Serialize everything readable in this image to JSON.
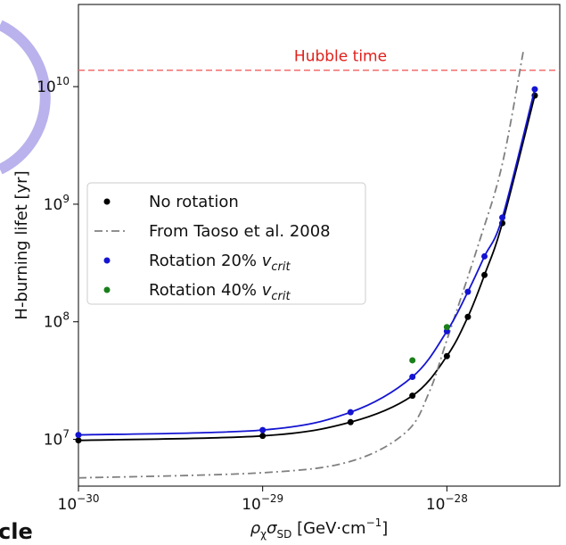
{
  "chart_data": {
    "type": "line",
    "x_label": [
      {
        "text": "ρ"
      },
      {
        "text": "χ",
        "sub": true
      },
      {
        "text": "σ"
      },
      {
        "text": "SD",
        "sub": true
      },
      {
        "text": " [GeV·cm"
      },
      {
        "text": "−1",
        "sup": true
      },
      {
        "text": "]"
      }
    ],
    "y_label": "H-burning lifet [yr]",
    "log_x": true,
    "log_y": true,
    "xlim": [
      1e-30,
      4.1e-28
    ],
    "ylim": [
      4000000,
      50000000000
    ],
    "xticks": [
      {
        "value": 1e-30,
        "label": "10",
        "exponent": "−30"
      },
      {
        "value": 1e-29,
        "label": "10",
        "exponent": "−29"
      },
      {
        "value": 1e-28,
        "label": "10",
        "exponent": "−28"
      }
    ],
    "yticks": [
      {
        "value": 10000000,
        "label": "10",
        "exponent": "7"
      },
      {
        "value": 100000000,
        "label": "10",
        "exponent": "8"
      },
      {
        "value": 1000000000,
        "label": "10",
        "exponent": "9"
      },
      {
        "value": 10000000000,
        "label": "10",
        "exponent": "10"
      }
    ],
    "hline": {
      "value": 13800000000,
      "label": "Hubble time",
      "color": "#f26d6d",
      "text_color": "#e0201b"
    },
    "legend": "center-left",
    "series": [
      {
        "name": "No rotation",
        "color": "#000000",
        "markers": true,
        "line": "solid",
        "x": [
          1e-30,
          1e-29,
          3e-29,
          6.5e-29,
          1e-28,
          1.3e-28,
          1.6e-28,
          2e-28,
          3e-28
        ],
        "values": [
          9800000,
          10700000,
          14000000,
          23500000,
          51000000,
          110000000,
          250000000,
          690000000,
          8400000000
        ]
      },
      {
        "name": "From Taoso et al. 2008",
        "color": "#808080",
        "markers": false,
        "line": "dashdot",
        "x": [
          1e-30,
          1e-29,
          3e-29,
          6e-29,
          8e-29,
          1e-28,
          1.5e-28,
          2e-28,
          2.6e-28
        ],
        "values": [
          4700000,
          5200000,
          6500000,
          11500000,
          25000000,
          70000000,
          480000000,
          2200000000,
          20000000000
        ]
      },
      {
        "name": "Rotation 20% ",
        "name_var": "v",
        "name_sub": "crit",
        "color": "#1414d2",
        "markers": true,
        "line": "solid",
        "x": [
          1e-30,
          1e-29,
          3e-29,
          6.5e-29,
          1e-28,
          1.3e-28,
          1.6e-28,
          2e-28,
          3e-28
        ],
        "values": [
          10900000,
          12000000,
          17000000,
          34000000,
          83000000,
          180000000,
          360000000,
          770000000,
          9500000000
        ]
      },
      {
        "name": "Rotation 40% ",
        "name_var": "v",
        "name_sub": "crit",
        "color": "#1a7f1a",
        "markers": true,
        "line": "none",
        "x": [
          6.5e-29,
          1e-28
        ],
        "values": [
          47000000,
          90000000
        ]
      }
    ]
  },
  "fragment_text": "cle"
}
